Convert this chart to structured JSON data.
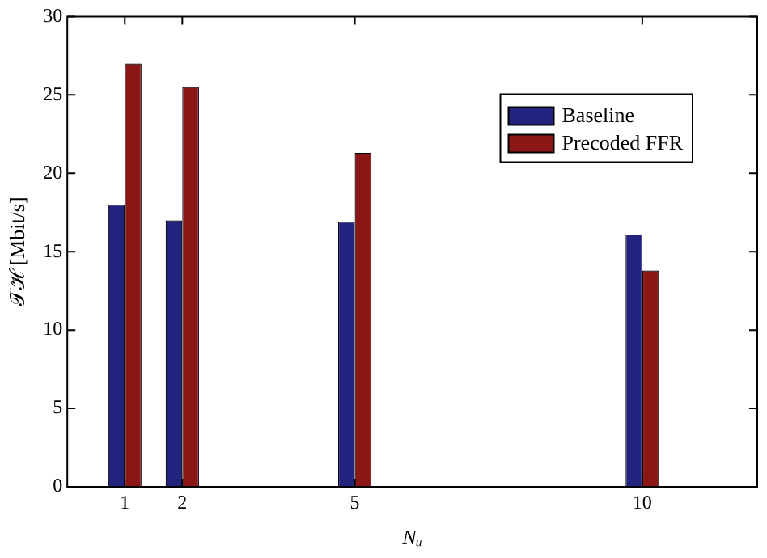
{
  "chart_data": {
    "type": "bar",
    "xlabel": "Nᵤ",
    "ylabel": "𝒯ℋ [Mbit/s]",
    "x": [
      1,
      2,
      5,
      10
    ],
    "xlim": [
      0,
      12
    ],
    "xticks": [
      1,
      2,
      5,
      10
    ],
    "ylim": [
      0,
      30
    ],
    "yticks": [
      0,
      5,
      10,
      15,
      20,
      25,
      30
    ],
    "series": [
      {
        "name": "Baseline",
        "color": "#22227f",
        "values": [
          18,
          17,
          16.9,
          16.1
        ]
      },
      {
        "name": "Precoded FFR",
        "color": "#8b1616",
        "values": [
          27,
          25.5,
          21.3,
          13.8
        ]
      }
    ],
    "grid": false,
    "legend": "top right"
  }
}
